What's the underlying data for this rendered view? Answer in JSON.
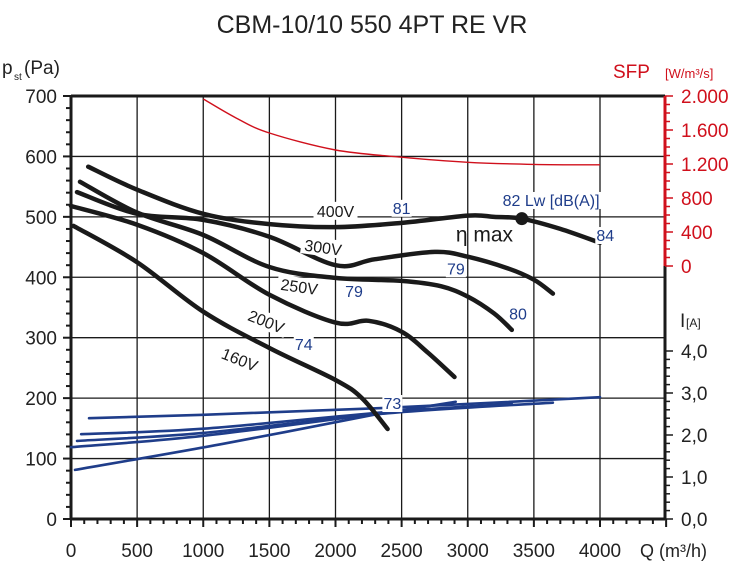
{
  "chart_data": {
    "type": "line",
    "title": "CBM-10/10 550 4PT RE VR",
    "xlabel": "Q (m³/h)",
    "ylabel_main": "p",
    "ylabel_sub": "st",
    "ylabel_unit": "(Pa)",
    "xlim": [
      0,
      4500
    ],
    "ylim": [
      0,
      700
    ],
    "grid": true,
    "x_ticks": [
      0,
      500,
      1000,
      1500,
      2000,
      2500,
      3000,
      3500,
      4000
    ],
    "y_ticks": [
      0,
      100,
      200,
      300,
      400,
      500,
      600,
      700
    ],
    "sfp_axis": {
      "label": "SFP",
      "unit": "[W/m³/s]",
      "color": "#d0101c",
      "range": [
        0,
        2000
      ],
      "tick_labels": [
        "0",
        "400",
        "800",
        "1.200",
        "1.600",
        "2.000"
      ],
      "ticks": [
        0,
        400,
        800,
        1200,
        1600,
        2000
      ]
    },
    "current_axis": {
      "label": "I",
      "unit": "[A]",
      "range": [
        0,
        4
      ],
      "tick_labels": [
        "0,0",
        "1,0",
        "2,0",
        "3,0",
        "4,0"
      ],
      "ticks": [
        0,
        1,
        2,
        3,
        4
      ]
    },
    "pressure_series": [
      {
        "name": "400V",
        "points": [
          [
            130,
            583
          ],
          [
            500,
            545
          ],
          [
            1000,
            505
          ],
          [
            1500,
            488
          ],
          [
            2000,
            483
          ],
          [
            2500,
            490
          ],
          [
            3000,
            502
          ],
          [
            3200,
            500
          ],
          [
            3409,
            497
          ],
          [
            3700,
            480
          ],
          [
            4000,
            457
          ]
        ]
      },
      {
        "name": "300V",
        "points": [
          [
            45,
            541
          ],
          [
            500,
            505
          ],
          [
            1000,
            495
          ],
          [
            1500,
            467
          ],
          [
            2000,
            420
          ],
          [
            2300,
            430
          ],
          [
            2750,
            442
          ],
          [
            3000,
            434
          ],
          [
            3300,
            415
          ],
          [
            3500,
            396
          ],
          [
            3644,
            373
          ]
        ]
      },
      {
        "name": "250V",
        "points": [
          [
            68,
            558
          ],
          [
            500,
            507
          ],
          [
            1000,
            470
          ],
          [
            1500,
            417
          ],
          [
            2000,
            399
          ],
          [
            2500,
            394
          ],
          [
            2800,
            385
          ],
          [
            3000,
            368
          ],
          [
            3200,
            340
          ],
          [
            3333,
            313
          ]
        ]
      },
      {
        "name": "200V",
        "points": [
          [
            0,
            518
          ],
          [
            500,
            487
          ],
          [
            1000,
            440
          ],
          [
            1500,
            371
          ],
          [
            2000,
            325
          ],
          [
            2250,
            328
          ],
          [
            2500,
            310
          ],
          [
            2700,
            275
          ],
          [
            2900,
            235
          ]
        ]
      },
      {
        "name": "160V",
        "points": [
          [
            20,
            485
          ],
          [
            500,
            425
          ],
          [
            1000,
            343
          ],
          [
            1500,
            283
          ],
          [
            2000,
            230
          ],
          [
            2200,
            200
          ],
          [
            2394,
            149
          ]
        ]
      }
    ],
    "current_series": [
      {
        "name": "400V",
        "points": [
          [
            136,
            2.4
          ],
          [
            1000,
            2.48
          ],
          [
            2350,
            2.64
          ],
          [
            4000,
            2.9
          ]
        ]
      },
      {
        "name": "300V",
        "points": [
          [
            45,
            1.86
          ],
          [
            1000,
            2.05
          ],
          [
            2400,
            2.52
          ],
          [
            3644,
            2.77
          ]
        ]
      },
      {
        "name": "250V",
        "points": [
          [
            76,
            2.02
          ],
          [
            1000,
            2.15
          ],
          [
            2400,
            2.55
          ],
          [
            3333,
            2.74
          ]
        ]
      },
      {
        "name": "200V",
        "points": [
          [
            0,
            1.71
          ],
          [
            1000,
            1.98
          ],
          [
            2400,
            2.55
          ],
          [
            2909,
            2.79
          ]
        ]
      },
      {
        "name": "160V",
        "points": [
          [
            30,
            1.17
          ],
          [
            1150,
            1.79
          ],
          [
            2350,
            2.52
          ],
          [
            2394,
            2.55
          ]
        ]
      }
    ],
    "sfp_series": {
      "name": "SFP",
      "points": [
        [
          1000,
          1965
        ],
        [
          1250,
          1740
        ],
        [
          1500,
          1565
        ],
        [
          2000,
          1365
        ],
        [
          2500,
          1280
        ],
        [
          3000,
          1220
        ],
        [
          3500,
          1195
        ],
        [
          4000,
          1190
        ]
      ]
    },
    "curve_labels": [
      {
        "text": "400V",
        "x": 2000,
        "y": 500,
        "rotate": 0
      },
      {
        "text": "300V",
        "x": 1900,
        "y": 440,
        "rotate": 8
      },
      {
        "text": "250V",
        "x": 1720,
        "y": 375,
        "rotate": 8
      },
      {
        "text": "200V",
        "x": 1460,
        "y": 318,
        "rotate": 22
      },
      {
        "text": "160V",
        "x": 1260,
        "y": 255,
        "rotate": 22
      }
    ],
    "sound_labels": [
      {
        "text": "81",
        "x": 2500,
        "y": 505
      },
      {
        "text": "79",
        "x": 2140,
        "y": 367
      },
      {
        "text": "79",
        "x": 2910,
        "y": 405
      },
      {
        "text": "80",
        "x": 3380,
        "y": 330
      },
      {
        "text": "74",
        "x": 1760,
        "y": 280
      },
      {
        "text": "73",
        "x": 2430,
        "y": 182
      },
      {
        "text": "84",
        "x": 4040,
        "y": 460
      },
      {
        "text": "82 Lw [dB(A)]",
        "x": 3630,
        "y": 518
      }
    ],
    "eta_max": {
      "label": "η max",
      "x": 3409,
      "y": 497
    },
    "colors": {
      "pressure": "#1a1a1a",
      "current": "#1f3d8a",
      "sfp": "#d0101c",
      "sound_label": "#1f3d8a"
    }
  }
}
